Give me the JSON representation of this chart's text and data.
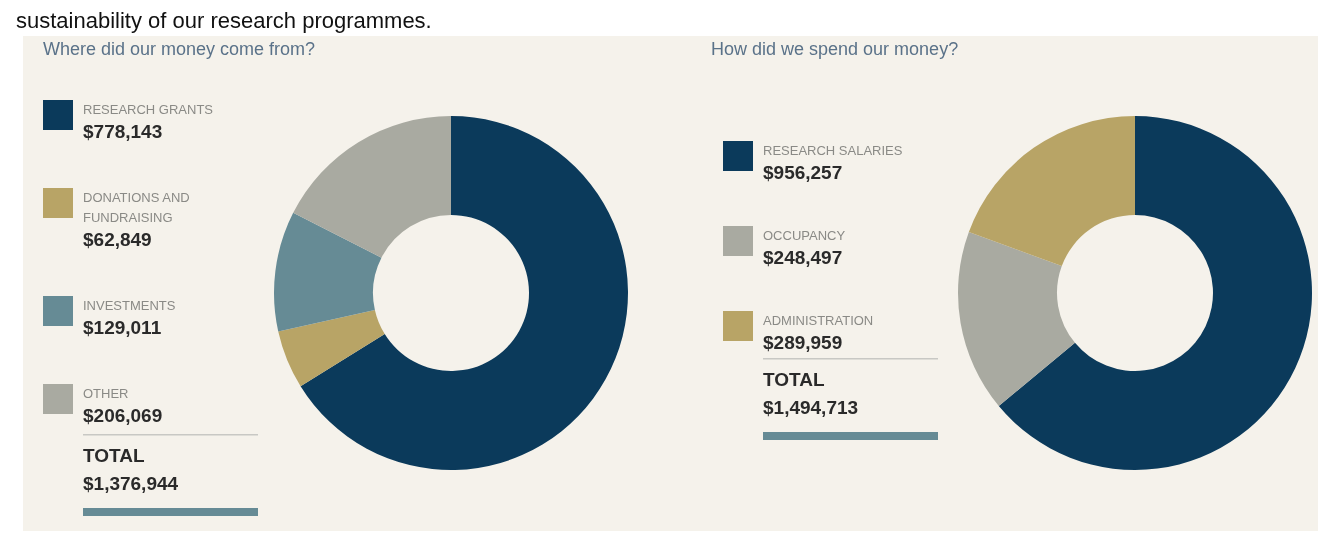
{
  "chart_data": [
    {
      "type": "donut",
      "title": "Where did our money come from?",
      "categories": [
        "RESEARCH GRANTS",
        "DONATIONS AND FUNDRAISING",
        "INVESTMENTS",
        "OTHER"
      ],
      "values": [
        778143,
        62849,
        129011,
        206069
      ],
      "value_labels": [
        "$778,143",
        "$62,849",
        "$129,011",
        "$206,069"
      ],
      "colors": [
        "#0b3a5b",
        "#b8a466",
        "#668b95",
        "#a9aaa1"
      ],
      "legend": "left",
      "annotations": [
        "sustainability of our research programmes.",
        "TOTAL",
        "$1,376,944"
      ]
    },
    {
      "type": "donut",
      "title": "How did we spend our money?",
      "categories": [
        "RESEARCH SALARIES",
        "OCCUPANCY",
        "ADMINISTRATION"
      ],
      "values": [
        956257,
        248497,
        289959
      ],
      "value_labels": [
        "$956,257",
        "$248,497",
        "$289,959"
      ],
      "colors": [
        "#0b3a5b",
        "#a9aaa1",
        "#b8a466"
      ],
      "legend": "left",
      "annotations": [
        "TOTAL",
        "$1,494,713"
      ]
    }
  ]
}
